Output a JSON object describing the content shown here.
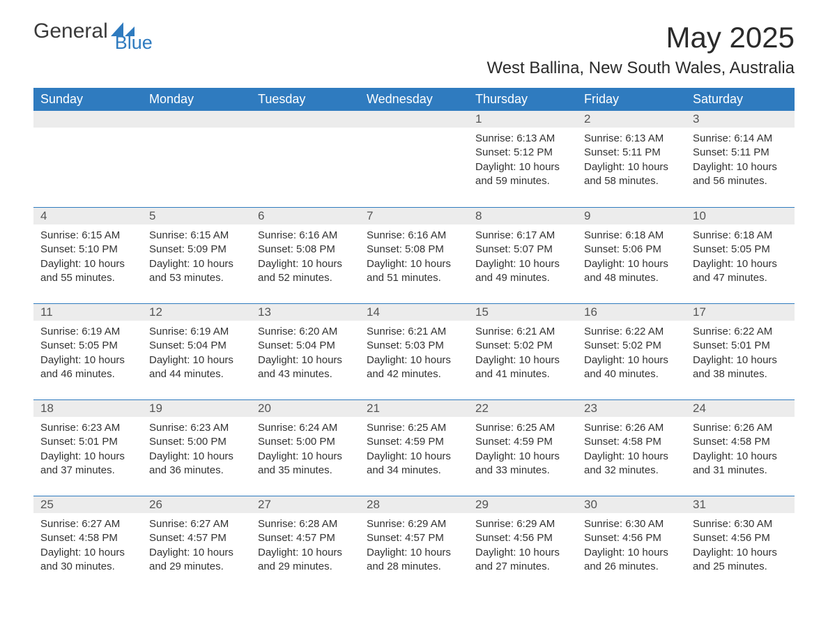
{
  "logo": {
    "general": "General",
    "blue": "Blue"
  },
  "title": "May 2025",
  "subtitle": "West Ballina, New South Wales, Australia",
  "colors": {
    "header_bg": "#2f7bbf",
    "header_text": "#ffffff",
    "daynum_bg": "#ececec",
    "border": "#2f7bbf",
    "body_text": "#333333",
    "logo_blue": "#2f7bbf",
    "background": "#ffffff"
  },
  "weekdays": [
    "Sunday",
    "Monday",
    "Tuesday",
    "Wednesday",
    "Thursday",
    "Friday",
    "Saturday"
  ],
  "weeks": [
    [
      null,
      null,
      null,
      null,
      {
        "d": "1",
        "sr": "Sunrise: 6:13 AM",
        "ss": "Sunset: 5:12 PM",
        "dl": "Daylight: 10 hours and 59 minutes."
      },
      {
        "d": "2",
        "sr": "Sunrise: 6:13 AM",
        "ss": "Sunset: 5:11 PM",
        "dl": "Daylight: 10 hours and 58 minutes."
      },
      {
        "d": "3",
        "sr": "Sunrise: 6:14 AM",
        "ss": "Sunset: 5:11 PM",
        "dl": "Daylight: 10 hours and 56 minutes."
      }
    ],
    [
      {
        "d": "4",
        "sr": "Sunrise: 6:15 AM",
        "ss": "Sunset: 5:10 PM",
        "dl": "Daylight: 10 hours and 55 minutes."
      },
      {
        "d": "5",
        "sr": "Sunrise: 6:15 AM",
        "ss": "Sunset: 5:09 PM",
        "dl": "Daylight: 10 hours and 53 minutes."
      },
      {
        "d": "6",
        "sr": "Sunrise: 6:16 AM",
        "ss": "Sunset: 5:08 PM",
        "dl": "Daylight: 10 hours and 52 minutes."
      },
      {
        "d": "7",
        "sr": "Sunrise: 6:16 AM",
        "ss": "Sunset: 5:08 PM",
        "dl": "Daylight: 10 hours and 51 minutes."
      },
      {
        "d": "8",
        "sr": "Sunrise: 6:17 AM",
        "ss": "Sunset: 5:07 PM",
        "dl": "Daylight: 10 hours and 49 minutes."
      },
      {
        "d": "9",
        "sr": "Sunrise: 6:18 AM",
        "ss": "Sunset: 5:06 PM",
        "dl": "Daylight: 10 hours and 48 minutes."
      },
      {
        "d": "10",
        "sr": "Sunrise: 6:18 AM",
        "ss": "Sunset: 5:05 PM",
        "dl": "Daylight: 10 hours and 47 minutes."
      }
    ],
    [
      {
        "d": "11",
        "sr": "Sunrise: 6:19 AM",
        "ss": "Sunset: 5:05 PM",
        "dl": "Daylight: 10 hours and 46 minutes."
      },
      {
        "d": "12",
        "sr": "Sunrise: 6:19 AM",
        "ss": "Sunset: 5:04 PM",
        "dl": "Daylight: 10 hours and 44 minutes."
      },
      {
        "d": "13",
        "sr": "Sunrise: 6:20 AM",
        "ss": "Sunset: 5:04 PM",
        "dl": "Daylight: 10 hours and 43 minutes."
      },
      {
        "d": "14",
        "sr": "Sunrise: 6:21 AM",
        "ss": "Sunset: 5:03 PM",
        "dl": "Daylight: 10 hours and 42 minutes."
      },
      {
        "d": "15",
        "sr": "Sunrise: 6:21 AM",
        "ss": "Sunset: 5:02 PM",
        "dl": "Daylight: 10 hours and 41 minutes."
      },
      {
        "d": "16",
        "sr": "Sunrise: 6:22 AM",
        "ss": "Sunset: 5:02 PM",
        "dl": "Daylight: 10 hours and 40 minutes."
      },
      {
        "d": "17",
        "sr": "Sunrise: 6:22 AM",
        "ss": "Sunset: 5:01 PM",
        "dl": "Daylight: 10 hours and 38 minutes."
      }
    ],
    [
      {
        "d": "18",
        "sr": "Sunrise: 6:23 AM",
        "ss": "Sunset: 5:01 PM",
        "dl": "Daylight: 10 hours and 37 minutes."
      },
      {
        "d": "19",
        "sr": "Sunrise: 6:23 AM",
        "ss": "Sunset: 5:00 PM",
        "dl": "Daylight: 10 hours and 36 minutes."
      },
      {
        "d": "20",
        "sr": "Sunrise: 6:24 AM",
        "ss": "Sunset: 5:00 PM",
        "dl": "Daylight: 10 hours and 35 minutes."
      },
      {
        "d": "21",
        "sr": "Sunrise: 6:25 AM",
        "ss": "Sunset: 4:59 PM",
        "dl": "Daylight: 10 hours and 34 minutes."
      },
      {
        "d": "22",
        "sr": "Sunrise: 6:25 AM",
        "ss": "Sunset: 4:59 PM",
        "dl": "Daylight: 10 hours and 33 minutes."
      },
      {
        "d": "23",
        "sr": "Sunrise: 6:26 AM",
        "ss": "Sunset: 4:58 PM",
        "dl": "Daylight: 10 hours and 32 minutes."
      },
      {
        "d": "24",
        "sr": "Sunrise: 6:26 AM",
        "ss": "Sunset: 4:58 PM",
        "dl": "Daylight: 10 hours and 31 minutes."
      }
    ],
    [
      {
        "d": "25",
        "sr": "Sunrise: 6:27 AM",
        "ss": "Sunset: 4:58 PM",
        "dl": "Daylight: 10 hours and 30 minutes."
      },
      {
        "d": "26",
        "sr": "Sunrise: 6:27 AM",
        "ss": "Sunset: 4:57 PM",
        "dl": "Daylight: 10 hours and 29 minutes."
      },
      {
        "d": "27",
        "sr": "Sunrise: 6:28 AM",
        "ss": "Sunset: 4:57 PM",
        "dl": "Daylight: 10 hours and 29 minutes."
      },
      {
        "d": "28",
        "sr": "Sunrise: 6:29 AM",
        "ss": "Sunset: 4:57 PM",
        "dl": "Daylight: 10 hours and 28 minutes."
      },
      {
        "d": "29",
        "sr": "Sunrise: 6:29 AM",
        "ss": "Sunset: 4:56 PM",
        "dl": "Daylight: 10 hours and 27 minutes."
      },
      {
        "d": "30",
        "sr": "Sunrise: 6:30 AM",
        "ss": "Sunset: 4:56 PM",
        "dl": "Daylight: 10 hours and 26 minutes."
      },
      {
        "d": "31",
        "sr": "Sunrise: 6:30 AM",
        "ss": "Sunset: 4:56 PM",
        "dl": "Daylight: 10 hours and 25 minutes."
      }
    ]
  ]
}
